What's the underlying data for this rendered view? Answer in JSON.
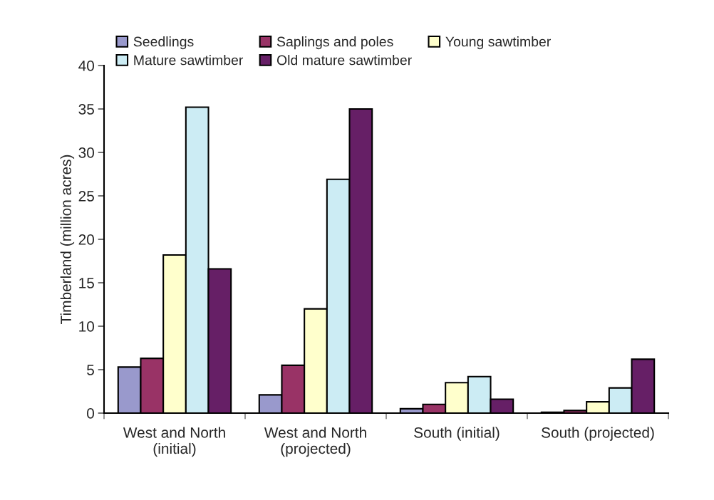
{
  "chart_data": {
    "type": "bar",
    "ylabel": "Timberland (million acres)",
    "categories": [
      "West and North\n(initial)",
      "West and North\n(projected)",
      "South (initial)",
      "South (projected)"
    ],
    "series": [
      {
        "name": "Seedlings",
        "color": "#9999cc",
        "values": [
          5.3,
          2.1,
          0.5,
          0.1
        ]
      },
      {
        "name": "Saplings and poles",
        "color": "#993366",
        "values": [
          6.3,
          5.5,
          1.0,
          0.3
        ]
      },
      {
        "name": "Young sawtimber",
        "color": "#ffffcc",
        "values": [
          18.2,
          12.0,
          3.5,
          1.3
        ]
      },
      {
        "name": "Mature sawtimber",
        "color": "#ccecf4",
        "values": [
          35.2,
          26.9,
          4.2,
          2.9
        ]
      },
      {
        "name": "Old mature sawtimber",
        "color": "#661f66",
        "values": [
          16.6,
          35.0,
          1.6,
          6.2
        ]
      }
    ],
    "ylim": [
      0,
      40
    ],
    "yticks": [
      0,
      5,
      10,
      15,
      20,
      25,
      30,
      35,
      40
    ],
    "grid": false,
    "legend": "top"
  }
}
